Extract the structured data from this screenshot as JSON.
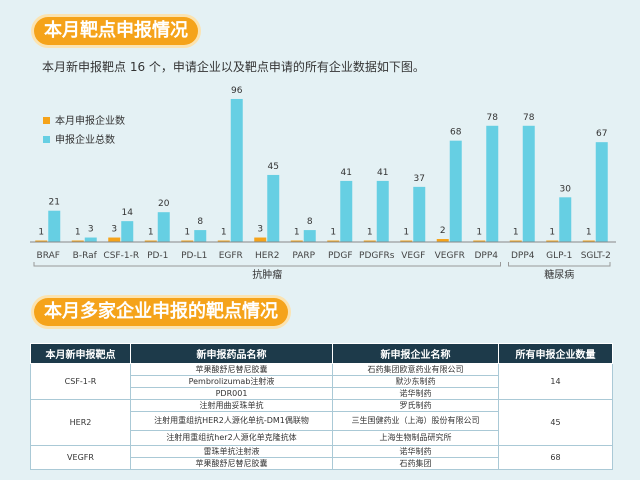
{
  "section1_title": "本月靶点申报情况",
  "intro": "本月新申报靶点 16 个，申请企业以及靶点申请的所有企业数据如下图。",
  "chart_data": {
    "type": "bar",
    "categories": [
      "BRAF",
      "B-Raf",
      "CSF-1-R",
      "PD-1",
      "PD-L1",
      "EGFR",
      "HER2",
      "PARP",
      "PDGF",
      "PDGFRs",
      "VEGF",
      "VEGFR",
      "DPP4",
      "DPP4",
      "GLP-1",
      "SGLT-2"
    ],
    "series": [
      {
        "name": "本月申报企业数",
        "color": "#f5a31a",
        "values": [
          1,
          1,
          3,
          1,
          1,
          1,
          3,
          1,
          1,
          1,
          1,
          2,
          1,
          1,
          1,
          1
        ]
      },
      {
        "name": "申报企业总数",
        "color": "#66cfe3",
        "values": [
          21,
          3,
          14,
          20,
          8,
          96,
          45,
          8,
          41,
          41,
          37,
          68,
          78,
          78,
          30,
          67
        ]
      }
    ],
    "groups": [
      {
        "label": "抗肿瘤",
        "range": [
          0,
          12
        ]
      },
      {
        "label": "糖尿病",
        "range": [
          13,
          15
        ]
      }
    ],
    "ylim": [
      0,
      100
    ]
  },
  "section2_title": "本月多家企业申报的靶点情况",
  "table": {
    "headers": [
      "本月新申报靶点",
      "新申报药品名称",
      "新申报企业名称",
      "所有申报企业数量"
    ],
    "groups": [
      {
        "target": "CSF-1-R",
        "count": "14",
        "rows": [
          {
            "drug": "苹果酸舒尼替尼胶囊",
            "company": "石药集团欧意药业有限公司"
          },
          {
            "drug": "Pembrolizumab注射液",
            "company": "默沙东制药"
          },
          {
            "drug": "PDR001",
            "company": "诺华制药"
          }
        ]
      },
      {
        "target": "HER2",
        "count": "45",
        "rows": [
          {
            "drug": "注射用曲妥珠单抗",
            "company": "罗氏制药"
          },
          {
            "drug": "注射用重组抗HER2人源化单抗-DM1偶联物",
            "company": "三生国健药业（上海）股份有限公司"
          },
          {
            "drug": "注射用重组抗her2人源化单克隆抗体",
            "company": "上海生物制品研究所"
          }
        ]
      },
      {
        "target": "VEGFR",
        "count": "68",
        "rows": [
          {
            "drug": "雷珠单抗注射液",
            "company": "诺华制药"
          },
          {
            "drug": "苹果酸舒尼替尼胶囊",
            "company": "石药集团"
          }
        ]
      }
    ]
  }
}
